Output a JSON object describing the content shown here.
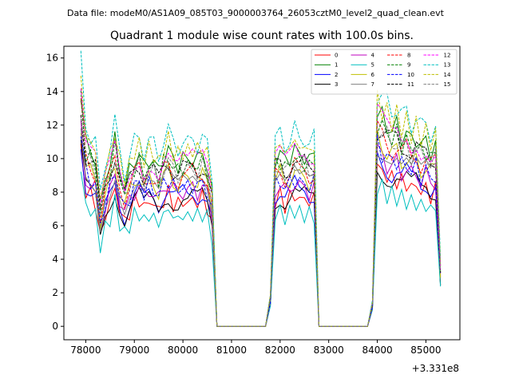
{
  "suptitle": "Data file: modeM0/AS1A09_085T03_9000003764_26053cztM0_level2_quad_clean.evt",
  "chart_data": {
    "type": "line",
    "title": "Quadrant 1 module wise count rates with 100.0s bins.",
    "xlabel": "",
    "ylabel": "",
    "x_offset_label": "+3.331e8",
    "xlim": [
      77550,
      85700
    ],
    "ylim": [
      -0.8,
      16.7
    ],
    "xticks": [
      78000,
      79000,
      80000,
      81000,
      82000,
      83000,
      84000,
      85000
    ],
    "xtick_labels": [
      "78000",
      "79000",
      "80000",
      "81000",
      "82000",
      "83000",
      "84000",
      "85000"
    ],
    "yticks": [
      0,
      2,
      4,
      6,
      8,
      10,
      12,
      14,
      16
    ],
    "ytick_labels": [
      "0",
      "2",
      "4",
      "6",
      "8",
      "10",
      "12",
      "14",
      "16"
    ],
    "legend_position": "top-right",
    "legend_columns": 4,
    "x": [
      77900,
      78000,
      78100,
      78200,
      78300,
      78400,
      78500,
      78600,
      78700,
      78800,
      78900,
      79000,
      79100,
      79200,
      79300,
      79400,
      79500,
      79600,
      79700,
      79800,
      79900,
      80000,
      80100,
      80200,
      80300,
      80400,
      80500,
      80600,
      80700,
      80800,
      80900,
      81000,
      81100,
      81200,
      81300,
      81400,
      81500,
      81600,
      81700,
      81800,
      81900,
      82000,
      82100,
      82200,
      82300,
      82400,
      82500,
      82600,
      82700,
      82800,
      82900,
      83000,
      83100,
      83200,
      83300,
      83400,
      83500,
      83600,
      83700,
      83800,
      83900,
      84000,
      84100,
      84200,
      84300,
      84400,
      84500,
      84600,
      84700,
      84800,
      84900,
      85000,
      85100,
      85200,
      85300
    ],
    "base_profile": [
      12.0,
      9.2,
      8.8,
      8.5,
      6.0,
      7.5,
      8.3,
      9.3,
      8.0,
      7.0,
      7.8,
      8.4,
      8.7,
      8.0,
      8.5,
      8.3,
      7.8,
      8.6,
      8.9,
      8.4,
      8.2,
      8.5,
      8.3,
      8.6,
      8.4,
      8.7,
      8.2,
      6.8,
      0,
      0,
      0,
      0,
      0,
      0,
      0,
      0,
      0,
      0,
      0,
      1.5,
      8.5,
      8.8,
      8.3,
      8.6,
      9.0,
      8.5,
      8.7,
      8.4,
      8.6,
      0,
      0,
      0,
      0,
      0,
      0,
      0,
      0,
      0,
      0,
      0,
      1.2,
      10.8,
      10.5,
      10.2,
      9.9,
      10.1,
      9.6,
      9.8,
      9.3,
      9.6,
      9.1,
      9.3,
      8.9,
      9.1,
      3.0
    ],
    "series": [
      {
        "name": "0",
        "color": "#ff0000",
        "style": "solid",
        "scale": 0.88
      },
      {
        "name": "1",
        "color": "#008000",
        "style": "solid",
        "scale": 1.18
      },
      {
        "name": "2",
        "color": "#0000ff",
        "style": "solid",
        "scale": 0.93
      },
      {
        "name": "3",
        "color": "#000000",
        "style": "solid",
        "scale": 0.89
      },
      {
        "name": "4",
        "color": "#bf00bf",
        "style": "solid",
        "scale": 0.96
      },
      {
        "name": "5",
        "color": "#00bfbf",
        "style": "solid",
        "scale": 0.78
      },
      {
        "name": "6",
        "color": "#bfbf00",
        "style": "solid",
        "scale": 1.03
      },
      {
        "name": "7",
        "color": "#808080",
        "style": "solid",
        "scale": 1.0
      },
      {
        "name": "8",
        "color": "#ff0000",
        "style": "dashed",
        "scale": 1.07
      },
      {
        "name": "9",
        "color": "#008000",
        "style": "dashed",
        "scale": 1.13
      },
      {
        "name": "10",
        "color": "#0000ff",
        "style": "dashed",
        "scale": 0.99
      },
      {
        "name": "11",
        "color": "#000000",
        "style": "dashed",
        "scale": 1.11
      },
      {
        "name": "12",
        "color": "#ff00ff",
        "style": "dashed",
        "scale": 1.16
      },
      {
        "name": "13",
        "color": "#00bfbf",
        "style": "dashed",
        "scale": 1.3
      },
      {
        "name": "14",
        "color": "#bfbf00",
        "style": "dashed",
        "scale": 1.24
      },
      {
        "name": "15",
        "color": "#808080",
        "style": "dashed",
        "scale": 1.1
      }
    ]
  }
}
